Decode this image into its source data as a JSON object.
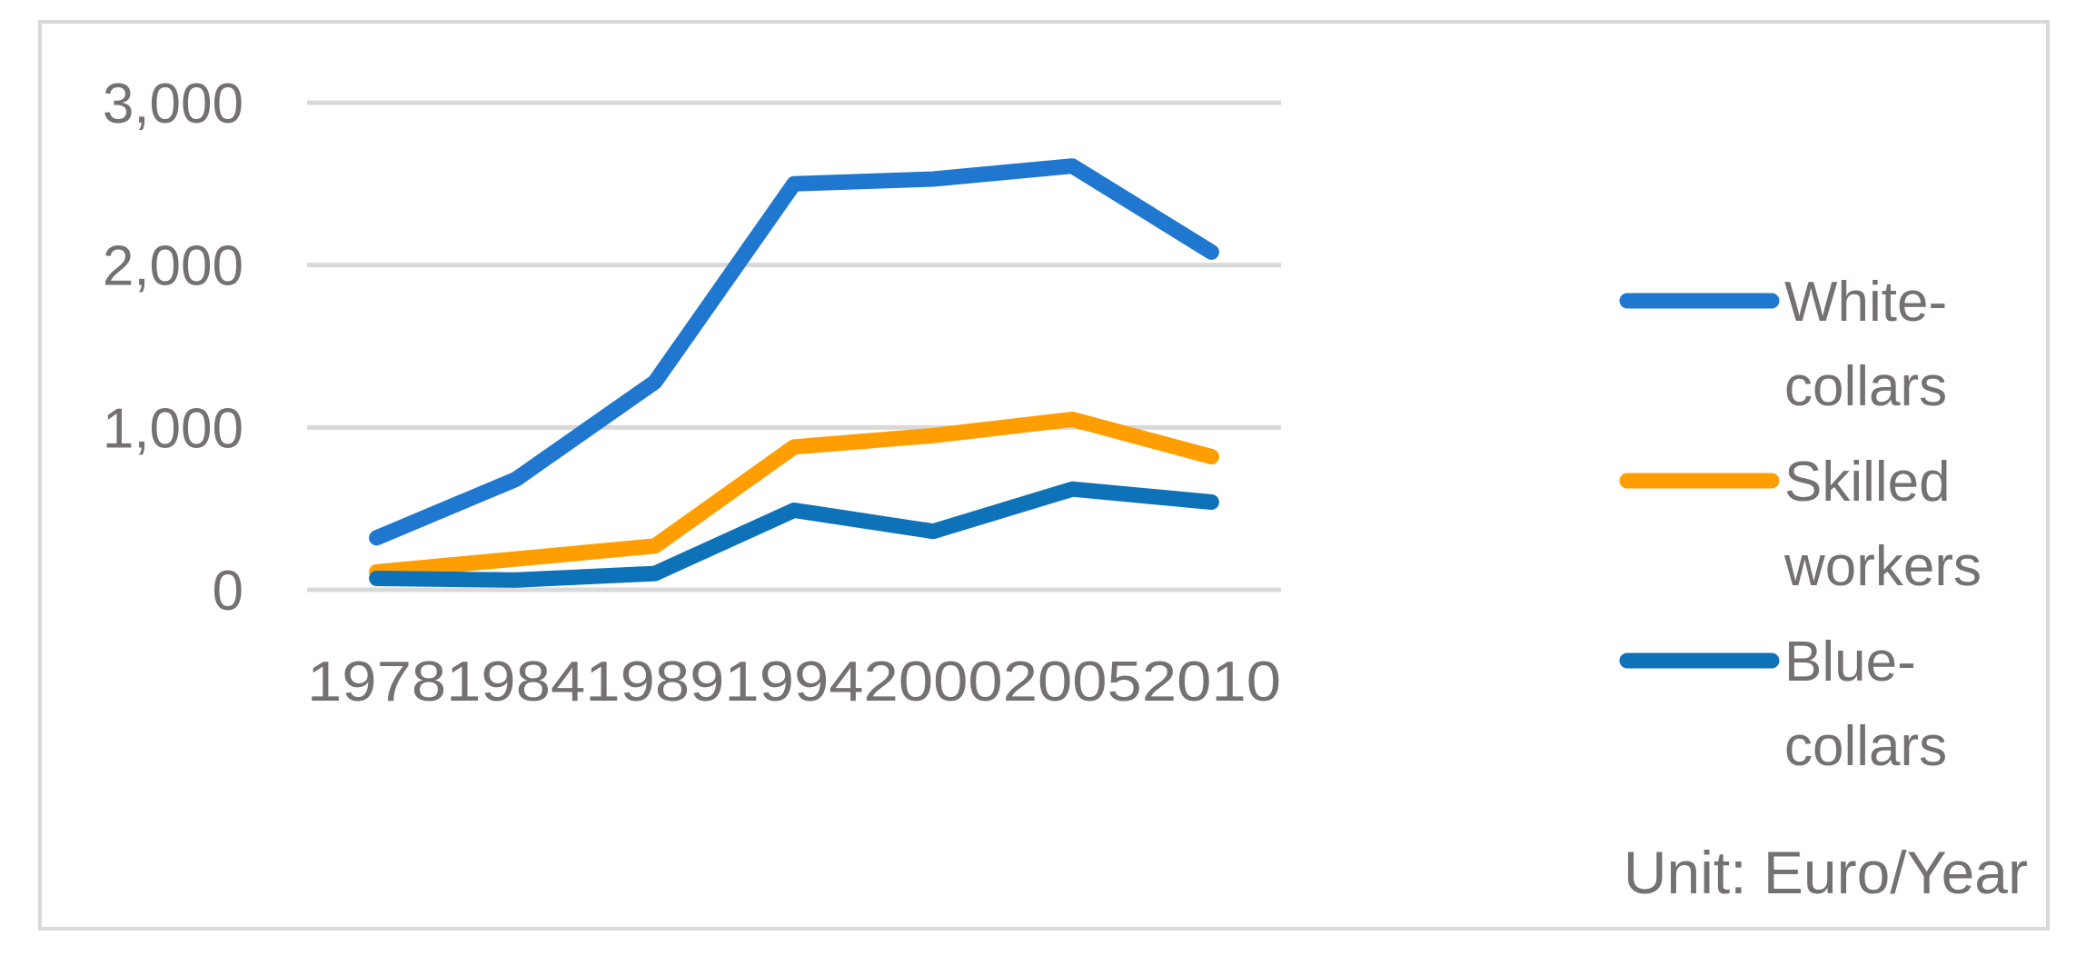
{
  "chart_data": {
    "type": "line",
    "title": "",
    "xlabel": "",
    "ylabel": "",
    "categories": [
      "1978",
      "1984",
      "1989",
      "1994",
      "2000",
      "2005",
      "2010"
    ],
    "series": [
      {
        "name": "White-collars",
        "values": [
          320,
          680,
          1280,
          2500,
          2530,
          2610,
          2080
        ],
        "color": "#1f77d0"
      },
      {
        "name": "Skilled workers",
        "values": [
          110,
          190,
          270,
          880,
          950,
          1050,
          820
        ],
        "color": "#ff9e00"
      },
      {
        "name": "Blue-collars",
        "values": [
          70,
          60,
          100,
          490,
          360,
          620,
          540
        ],
        "color": "#0e72b8"
      }
    ],
    "ylim": [
      0,
      3000
    ],
    "yticks": [
      0,
      1000,
      2000,
      3000
    ],
    "ytick_labels": [
      "0",
      "1,000",
      "2,000",
      "3,000"
    ],
    "grid": true,
    "legend_position": "right",
    "legend": [
      {
        "lines": [
          "White-",
          "collars"
        ]
      },
      {
        "lines": [
          "Skilled",
          "workers"
        ]
      },
      {
        "lines": [
          "Blue-",
          "collars"
        ]
      }
    ],
    "annotation": "Unit: Euro/Year"
  },
  "colors": {
    "grid": "#d9d9d9",
    "axis_text": "#767171",
    "frame": "#d9d9d9"
  }
}
